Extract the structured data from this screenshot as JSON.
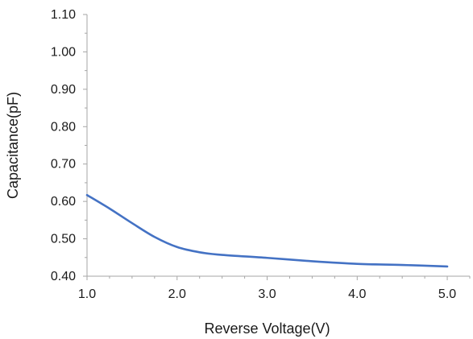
{
  "chart_data": {
    "type": "line",
    "title": "",
    "xlabel": "Reverse Voltage(V)",
    "ylabel": "Capacitance(pF)",
    "xlim": [
      1.0,
      5.25
    ],
    "ylim": [
      0.4,
      1.1
    ],
    "xticks": [
      "1.0",
      "2.0",
      "3.0",
      "4.0",
      "5.0"
    ],
    "yticks": [
      "0.40",
      "0.50",
      "0.60",
      "0.70",
      "0.80",
      "0.90",
      "1.00",
      "1.10"
    ],
    "grid": false,
    "series": [
      {
        "color": "#4472C4",
        "x": [
          1.0,
          1.25,
          1.5,
          1.75,
          2.0,
          2.25,
          2.5,
          3.0,
          3.5,
          4.0,
          4.5,
          5.0
        ],
        "y": [
          0.617,
          0.581,
          0.542,
          0.505,
          0.478,
          0.464,
          0.457,
          0.449,
          0.44,
          0.433,
          0.43,
          0.426
        ]
      }
    ]
  }
}
